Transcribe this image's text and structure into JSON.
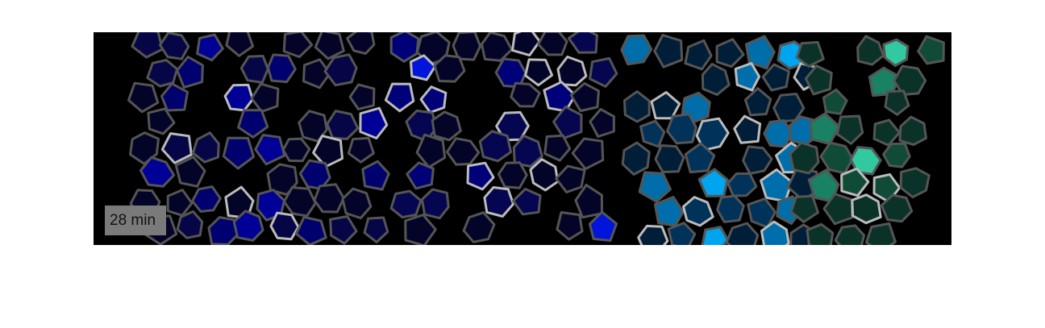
{
  "label": "28 min"
}
